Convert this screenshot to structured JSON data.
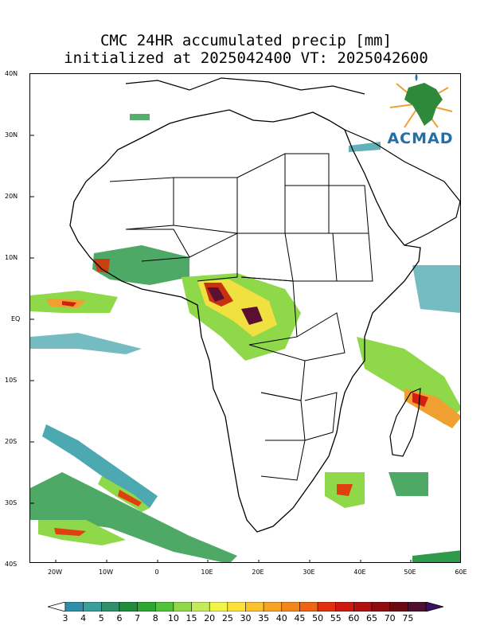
{
  "title": {
    "line1": "CMC 24HR accumulated precip [mm]",
    "line2": "initialized at 2025042400 VT: 2025042600"
  },
  "logo": {
    "text": "ACMAD",
    "icon": "africa-sun-logo-icon"
  },
  "axes": {
    "lat_labels": [
      "40N",
      "30N",
      "20N",
      "10N",
      "EQ",
      "10S",
      "20S",
      "30S",
      "40S"
    ],
    "lon_labels": [
      "20W",
      "10W",
      "0",
      "10E",
      "20E",
      "30E",
      "40E",
      "50E",
      "60E"
    ],
    "lat_range": [
      -40,
      40
    ],
    "lon_range": [
      -25,
      60
    ]
  },
  "colorbar": {
    "labels": [
      "3",
      "4",
      "5",
      "6",
      "7",
      "8",
      "10",
      "15",
      "20",
      "25",
      "30",
      "35",
      "40",
      "45",
      "50",
      "55",
      "60",
      "65",
      "70",
      "75"
    ],
    "colors": [
      "#2f8fa8",
      "#3a9e9a",
      "#2e8f6a",
      "#1e8c3a",
      "#2aa832",
      "#52c23a",
      "#8fd84a",
      "#c4ec5a",
      "#f0f54a",
      "#fde03a",
      "#f9c22e",
      "#f6a424",
      "#f2861c",
      "#ee6414",
      "#e0300e",
      "#cc1a10",
      "#b01010",
      "#8e0c10",
      "#6c0a14",
      "#501030",
      "#3a1060"
    ]
  },
  "precip_levels": {
    "light": "#3aa0a8",
    "low": "#2e9a4a",
    "mid": "#8fd84a",
    "high": "#f0e040",
    "heavy": "#e04010",
    "extreme": "#5a1030"
  }
}
